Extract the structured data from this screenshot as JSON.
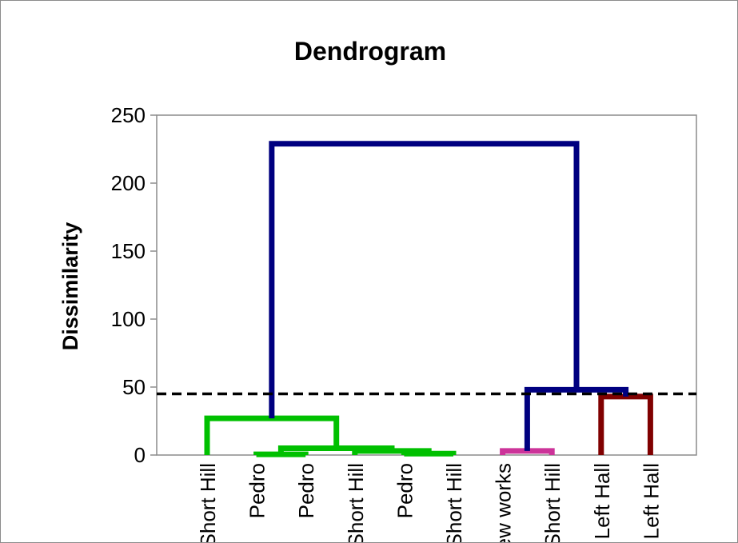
{
  "chart_data": {
    "type": "dendrogram",
    "title": "Dendrogram",
    "ylabel": "Dissimilarity",
    "ylim": [
      0,
      250
    ],
    "yticks": [
      0,
      50,
      100,
      150,
      200,
      250
    ],
    "leaves": [
      "Short Hill",
      "Pedro",
      "Pedro",
      "Short Hill",
      "Pedro",
      "Short Hill",
      "New works",
      "Short Hill",
      "Left Hall",
      "Left Hall"
    ],
    "cut_line": {
      "value": 45,
      "style": "dashed",
      "color": "#000000"
    },
    "links": [
      {
        "left": [
          1,
          0
        ],
        "right": [
          2,
          0
        ],
        "height": 0.5,
        "color": "#00c000"
      },
      {
        "left": [
          4,
          0
        ],
        "right": [
          5,
          0
        ],
        "height": 1,
        "color": "#00c000"
      },
      {
        "left": [
          3,
          0
        ],
        "right": [
          4.5,
          1
        ],
        "height": 3,
        "color": "#00c000"
      },
      {
        "left": [
          1.5,
          0.5
        ],
        "right": [
          3.75,
          3
        ],
        "height": 5,
        "color": "#00c000"
      },
      {
        "left": [
          0,
          0
        ],
        "right": [
          2.625,
          5
        ],
        "height": 27,
        "color": "#00c000"
      },
      {
        "left": [
          6,
          0
        ],
        "right": [
          7,
          0
        ],
        "height": 3,
        "color": "#cc3399"
      },
      {
        "left": [
          8,
          0
        ],
        "right": [
          9,
          0
        ],
        "height": 43,
        "color": "#800000"
      },
      {
        "left": [
          6.5,
          3
        ],
        "right": [
          8.5,
          43
        ],
        "height": 48,
        "color": "#000080"
      },
      {
        "left": [
          1.3125,
          27
        ],
        "right": [
          7.5,
          48
        ],
        "height": 229,
        "color": "#000080"
      }
    ]
  }
}
